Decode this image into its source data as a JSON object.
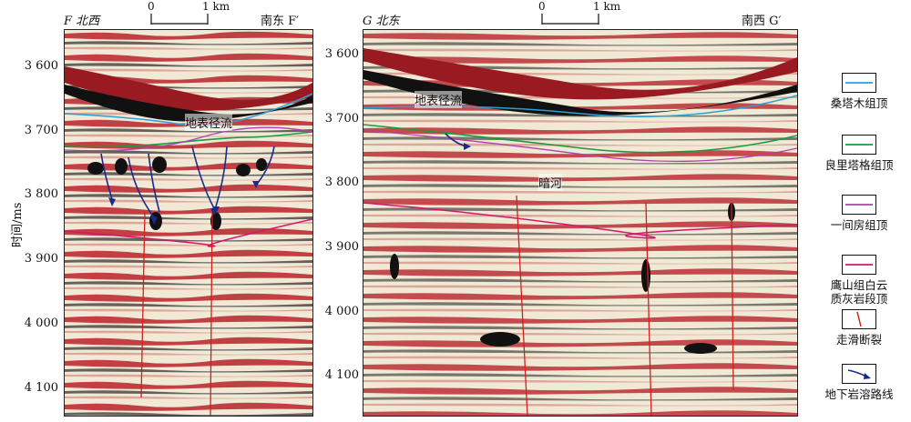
{
  "left_panel": {
    "title_left": "F 北西",
    "title_right": "南东 F′",
    "scale_start": "0",
    "scale_end": "1 km",
    "annotation_runoff": "地表径流",
    "y_ticks": [
      "3 600",
      "3 700",
      "3 800",
      "3 900",
      "4 000",
      "4 100"
    ]
  },
  "right_panel": {
    "title_left": "G 北东",
    "title_right": "南西 G′",
    "scale_start": "0",
    "scale_end": "1 km",
    "annotation_runoff": "地表径流",
    "annotation_river": "暗河",
    "y_ticks": [
      "3 600",
      "3 700",
      "3 800",
      "3 900",
      "4 000",
      "4 100"
    ]
  },
  "y_axis_label": "时间/ms",
  "legend": [
    {
      "label": "桑塔木组顶",
      "color": "#2aa0d8",
      "kind": "line"
    },
    {
      "label": "良里塔格组顶",
      "color": "#1a9a3a",
      "kind": "line"
    },
    {
      "label": "一间房组顶",
      "color": "#b040b0",
      "kind": "line"
    },
    {
      "label": "鹰山组白云质灰岩段顶",
      "color": "#d01870",
      "kind": "line"
    },
    {
      "label": "走滑断裂",
      "color": "#d02020",
      "kind": "fault"
    },
    {
      "label": "地下岩溶路线",
      "color": "#1a2a8a",
      "kind": "arrow"
    }
  ]
}
